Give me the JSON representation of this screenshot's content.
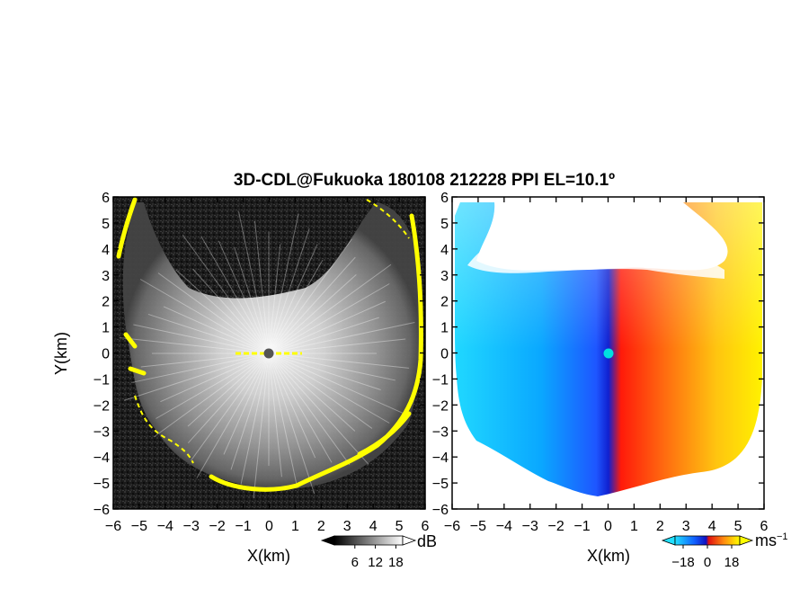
{
  "chart_data": {
    "title": "3D-CDL@Fukuoka 180108 212228 PPI EL=10.1º",
    "panels": [
      {
        "name": "reflectivity",
        "type": "heatmap",
        "xlabel": "X(km)",
        "ylabel": "Y(km)",
        "xlim": [
          -6,
          6
        ],
        "ylim": [
          -6,
          6
        ],
        "xticks": [
          -6,
          -5,
          -4,
          -3,
          -2,
          -1,
          0,
          1,
          2,
          3,
          4,
          5,
          6
        ],
        "yticks": [
          -6,
          -5,
          -4,
          -3,
          -2,
          -1,
          0,
          1,
          2,
          3,
          4,
          5,
          6
        ],
        "xtick_labels": [
          "−6",
          "−5",
          "−4",
          "−3",
          "−2",
          "−1",
          "0",
          "1",
          "2",
          "3",
          "4",
          "5",
          "6"
        ],
        "ytick_labels": [
          "−6",
          "−5",
          "−4",
          "−3",
          "−2",
          "−1",
          "0",
          "1",
          "2",
          "3",
          "4",
          "5",
          "6"
        ],
        "colormap": "grayscale (dark = low, white = high, yellow = saturated)",
        "colorbar": {
          "ticks": [
            6,
            12,
            18
          ],
          "unit": "dB",
          "range": [
            0,
            20
          ]
        }
      },
      {
        "name": "radial-velocity",
        "type": "heatmap",
        "xlabel": "X(km)",
        "xlim": [
          -6,
          6
        ],
        "ylim": [
          -6,
          6
        ],
        "xticks": [
          -6,
          -5,
          -4,
          -3,
          -2,
          -1,
          0,
          1,
          2,
          3,
          4,
          5,
          6
        ],
        "yticks": [
          -6,
          -5,
          -4,
          -3,
          -2,
          -1,
          0,
          1,
          2,
          3,
          4,
          5,
          6
        ],
        "xtick_labels": [
          "−6",
          "−5",
          "−4",
          "−3",
          "−2",
          "−1",
          "0",
          "1",
          "2",
          "3",
          "4",
          "5",
          "6"
        ],
        "ytick_labels": [
          "−6",
          "−5",
          "−4",
          "−3",
          "−2",
          "−1",
          "0",
          "1",
          "2",
          "3",
          "4",
          "5",
          "6"
        ],
        "colormap": "cyan-blue (negative) to red-yellow (positive)",
        "colorbar": {
          "ticks": [
            -18,
            0,
            18
          ],
          "tick_labels": [
            "−18",
            "0",
            "18"
          ],
          "unit": "ms",
          "unit_exponent": "−1",
          "range": [
            -24,
            24
          ]
        }
      }
    ],
    "colors": {
      "saturated": "#ffff00",
      "radar_center_left": "#555555",
      "radar_center_right": "#00e0e0",
      "velocity_negative": "#1e6bff",
      "velocity_positive": "#ff3a10"
    }
  }
}
